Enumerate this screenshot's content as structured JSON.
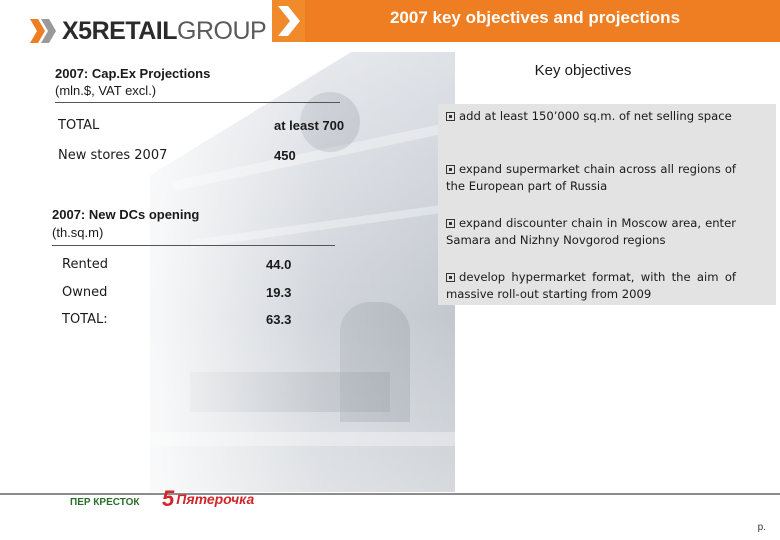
{
  "header": {
    "logo_bold": "X5",
    "logo_mid": "RETAIL",
    "logo_light": "GROUP",
    "title": "2007 key objectives and projections",
    "accent": "#ef7d22"
  },
  "capex": {
    "title": "2007: Cap.Ex Projections",
    "subtitle": "(mln.$, VAT excl.)",
    "rows": [
      {
        "label": "TOTAL",
        "value": "at least 700"
      },
      {
        "label": "New stores 2007",
        "value": "450"
      }
    ]
  },
  "dcs": {
    "title": "2007: New DCs opening",
    "subtitle": "(th.sq.m)",
    "rows": [
      {
        "label": "Rented",
        "value": "44.0"
      },
      {
        "label": "Owned",
        "value": "19.3"
      },
      {
        "label": "TOTAL:",
        "value": "63.3"
      }
    ]
  },
  "objectives": {
    "title": "Key objectives",
    "items": [
      "add at least 150’000 sq.m. of net selling space",
      "expand supermarket chain  across all regions of the European part of Russia",
      "expand discounter chain in Moscow area, enter Samara and Nizhny Novgorod regions",
      "develop hypermarket format, with the aim of massive roll-out starting from 2009"
    ]
  },
  "footer": {
    "brand_one": "ПЕР КРЕСТОК",
    "brand_two_num": "5",
    "brand_two": "Пятерочка",
    "page": "p."
  }
}
